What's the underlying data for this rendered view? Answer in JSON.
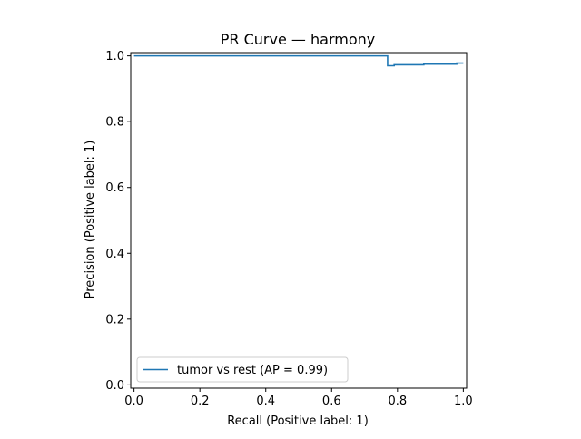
{
  "chart_data": {
    "type": "line",
    "title": "PR Curve — harmony",
    "xlabel": "Recall (Positive label: 1)",
    "ylabel": "Precision (Positive label: 1)",
    "xlim": [
      -0.01,
      1.01
    ],
    "ylim": [
      -0.01,
      1.01
    ],
    "xticks": [
      0.0,
      0.2,
      0.4,
      0.6,
      0.8,
      1.0
    ],
    "xtick_labels": [
      "0.0",
      "0.2",
      "0.4",
      "0.6",
      "0.8",
      "1.0"
    ],
    "yticks": [
      0.0,
      0.2,
      0.4,
      0.6,
      0.8,
      1.0
    ],
    "ytick_labels": [
      "0.0",
      "0.2",
      "0.4",
      "0.6",
      "0.8",
      "1.0"
    ],
    "grid": false,
    "legend_position": "lower-left",
    "step": "post",
    "series": [
      {
        "name": "tumor vs rest (AP = 0.99)",
        "color": "#1f77b4",
        "x": [
          0.0,
          0.77,
          0.77,
          0.79,
          0.88,
          0.98,
          1.0
        ],
        "y": [
          1.0,
          1.0,
          0.97,
          0.973,
          0.975,
          0.978,
          0.978
        ]
      }
    ]
  }
}
